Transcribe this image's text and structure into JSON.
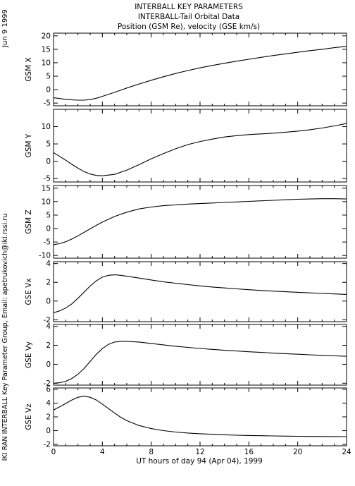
{
  "header": {
    "title_line1": "INTERBALL KEY PARAMETERS",
    "title_line2": "INTERBALL-Tail Orbital Data",
    "title_line3": "Position (GSM Re), velocity (GSE km/s)"
  },
  "side": {
    "date": "Jun  9 1999",
    "credit": "IKI RAN INTERBALL Key Parameter Group, Email: apetrukovich@iki.rssi.ru"
  },
  "chart_data": {
    "type": "line",
    "xlabel": "UT hours of day  94 (Apr 04), 1999",
    "xlim": [
      0,
      24
    ],
    "xticks": [
      0,
      4,
      8,
      12,
      16,
      20,
      24
    ],
    "xtick_labels": [
      "0",
      "4",
      "8",
      "12",
      "16",
      "20",
      "24"
    ],
    "grid": false,
    "panels": [
      {
        "ylabel": "GSM X",
        "ylim": [
          -6,
          21
        ],
        "yticks": [
          -5,
          0,
          5,
          10,
          15,
          20
        ],
        "x": [
          0,
          0.5,
          1,
          1.5,
          2,
          2.5,
          3,
          3.5,
          4,
          5,
          6,
          7,
          8,
          9,
          10,
          11,
          12,
          13,
          14,
          15,
          16,
          17,
          18,
          19,
          20,
          21,
          22,
          23,
          24
        ],
        "values": [
          -3.0,
          -3.3,
          -3.6,
          -3.8,
          -3.9,
          -3.9,
          -3.7,
          -3.2,
          -2.5,
          -1.0,
          0.6,
          2.1,
          3.5,
          4.8,
          6.0,
          7.1,
          8.1,
          9.0,
          9.8,
          10.6,
          11.3,
          12.0,
          12.7,
          13.3,
          13.9,
          14.5,
          15.0,
          15.6,
          16.1
        ]
      },
      {
        "ylabel": "GSM Y",
        "ylim": [
          -6,
          15
        ],
        "yticks": [
          -5,
          0,
          5,
          10
        ],
        "x": [
          0,
          0.5,
          1,
          1.5,
          2,
          2.5,
          3,
          3.5,
          4,
          5,
          6,
          7,
          8,
          9,
          10,
          11,
          12,
          13,
          14,
          15,
          16,
          17,
          18,
          19,
          20,
          21,
          22,
          23,
          24
        ],
        "values": [
          2.5,
          1.4,
          0.3,
          -0.9,
          -2.0,
          -3.0,
          -3.7,
          -4.1,
          -4.2,
          -3.8,
          -2.6,
          -1.0,
          0.7,
          2.2,
          3.6,
          4.8,
          5.7,
          6.4,
          7.0,
          7.4,
          7.7,
          7.9,
          8.1,
          8.4,
          8.7,
          9.1,
          9.6,
          10.2,
          10.9
        ]
      },
      {
        "ylabel": "GSM Z",
        "ylim": [
          -11,
          16
        ],
        "yticks": [
          -10,
          -5,
          0,
          5,
          10,
          15
        ],
        "x": [
          0,
          0.5,
          1,
          1.5,
          2,
          2.5,
          3,
          3.5,
          4,
          5,
          6,
          7,
          8,
          9,
          10,
          11,
          12,
          13,
          14,
          15,
          16,
          17,
          18,
          19,
          20,
          21,
          22,
          23,
          24
        ],
        "values": [
          -6.0,
          -5.6,
          -4.9,
          -3.9,
          -2.7,
          -1.4,
          -0.1,
          1.2,
          2.4,
          4.5,
          6.1,
          7.3,
          8.0,
          8.5,
          8.8,
          9.1,
          9.3,
          9.5,
          9.7,
          9.9,
          10.1,
          10.3,
          10.5,
          10.7,
          10.9,
          11.0,
          11.1,
          11.1,
          11.0
        ]
      },
      {
        "ylabel": "GSE Vx",
        "ylim": [
          -2.2,
          4.2
        ],
        "yticks": [
          -2,
          0,
          2,
          4
        ],
        "x": [
          0,
          0.5,
          1,
          1.5,
          2,
          2.5,
          3,
          3.5,
          4,
          4.5,
          5,
          5.5,
          6,
          7,
          8,
          9,
          10,
          11,
          12,
          13,
          14,
          15,
          16,
          17,
          18,
          19,
          20,
          21,
          22,
          23,
          24
        ],
        "values": [
          -1.25,
          -1.05,
          -0.75,
          -0.3,
          0.3,
          0.95,
          1.6,
          2.15,
          2.55,
          2.75,
          2.8,
          2.75,
          2.65,
          2.45,
          2.25,
          2.05,
          1.9,
          1.75,
          1.62,
          1.5,
          1.4,
          1.3,
          1.21,
          1.13,
          1.06,
          0.99,
          0.93,
          0.87,
          0.81,
          0.76,
          0.71
        ]
      },
      {
        "ylabel": "GSE Vy",
        "ylim": [
          -2.2,
          4.2
        ],
        "yticks": [
          -2,
          0,
          2,
          4
        ],
        "x": [
          0,
          0.5,
          1,
          1.5,
          2,
          2.5,
          3,
          3.5,
          4,
          4.5,
          5,
          5.5,
          6,
          7,
          8,
          9,
          10,
          11,
          12,
          13,
          14,
          15,
          16,
          17,
          18,
          19,
          20,
          21,
          22,
          23,
          24
        ],
        "values": [
          -2.0,
          -1.95,
          -1.8,
          -1.5,
          -1.05,
          -0.45,
          0.3,
          1.05,
          1.65,
          2.1,
          2.35,
          2.42,
          2.42,
          2.35,
          2.2,
          2.05,
          1.9,
          1.78,
          1.67,
          1.57,
          1.48,
          1.4,
          1.32,
          1.25,
          1.18,
          1.12,
          1.06,
          1.0,
          0.94,
          0.89,
          0.84
        ]
      },
      {
        "ylabel": "GSE Vz",
        "ylim": [
          -2.2,
          6.2
        ],
        "yticks": [
          -2,
          0,
          2,
          4,
          6
        ],
        "x": [
          0,
          0.5,
          1,
          1.5,
          2,
          2.5,
          3,
          3.5,
          4,
          4.5,
          5,
          5.5,
          6,
          7,
          8,
          9,
          10,
          11,
          12,
          13,
          14,
          15,
          16,
          17,
          18,
          19,
          20,
          21,
          22,
          23,
          24
        ],
        "values": [
          3.0,
          3.45,
          3.95,
          4.45,
          4.85,
          5.0,
          4.85,
          4.45,
          3.85,
          3.2,
          2.55,
          1.95,
          1.45,
          0.75,
          0.3,
          0.0,
          -0.2,
          -0.35,
          -0.45,
          -0.53,
          -0.6,
          -0.66,
          -0.7,
          -0.74,
          -0.77,
          -0.8,
          -0.82,
          -0.84,
          -0.85,
          -0.86,
          -0.87
        ]
      }
    ]
  }
}
